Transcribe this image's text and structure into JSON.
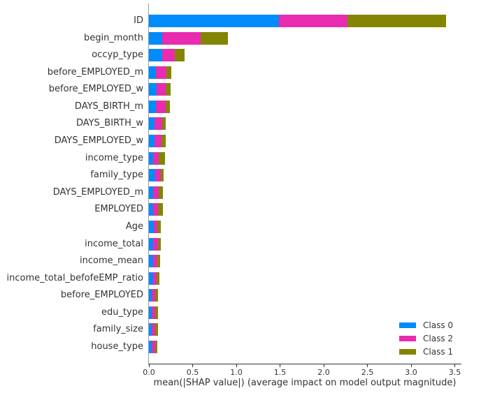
{
  "chart_data": {
    "type": "bar",
    "orientation": "horizontal",
    "stacked": true,
    "title": "",
    "xlabel": "mean(|SHAP value|) (average impact on model output magnitude)",
    "ylabel": "",
    "xlim": [
      0,
      3.57
    ],
    "xticks": [
      "0.0",
      "0.5",
      "1.0",
      "1.5",
      "2.0",
      "2.5",
      "3.0",
      "3.5"
    ],
    "grid": false,
    "legend_position": "lower right",
    "categories": [
      "ID",
      "begin_month",
      "occyp_type",
      "before_EMPLOYED_m",
      "before_EMPLOYED_w",
      "DAYS_BIRTH_m",
      "DAYS_BIRTH_w",
      "DAYS_EMPLOYED_w",
      "income_type",
      "family_type",
      "DAYS_EMPLOYED_m",
      "EMPLOYED",
      "Age",
      "income_total",
      "income_mean",
      "income_total_befofeEMP_ratio",
      "before_EMPLOYED",
      "edu_type",
      "family_size",
      "house_type"
    ],
    "series": [
      {
        "name": "Class 0",
        "color": "#008bfb",
        "values": [
          1.488,
          0.152,
          0.152,
          0.08,
          0.088,
          0.08,
          0.064,
          0.064,
          0.048,
          0.072,
          0.048,
          0.048,
          0.056,
          0.048,
          0.048,
          0.048,
          0.032,
          0.032,
          0.032,
          0.032
        ]
      },
      {
        "name": "Class 2",
        "color": "#e92bb0",
        "values": [
          0.784,
          0.44,
          0.144,
          0.12,
          0.104,
          0.112,
          0.088,
          0.08,
          0.064,
          0.064,
          0.064,
          0.056,
          0.04,
          0.056,
          0.048,
          0.04,
          0.04,
          0.04,
          0.04,
          0.04
        ]
      },
      {
        "name": "Class 1",
        "color": "#838500",
        "values": [
          1.128,
          0.312,
          0.112,
          0.056,
          0.056,
          0.048,
          0.04,
          0.048,
          0.072,
          0.032,
          0.048,
          0.056,
          0.04,
          0.032,
          0.032,
          0.032,
          0.032,
          0.032,
          0.032,
          0.024
        ]
      }
    ],
    "legend": [
      "Class 0",
      "Class 2",
      "Class 1"
    ]
  },
  "legend": {
    "items": [
      {
        "label": "Class 0",
        "color": "#008bfb"
      },
      {
        "label": "Class 2",
        "color": "#e92bb0"
      },
      {
        "label": "Class 1",
        "color": "#838500"
      }
    ]
  }
}
